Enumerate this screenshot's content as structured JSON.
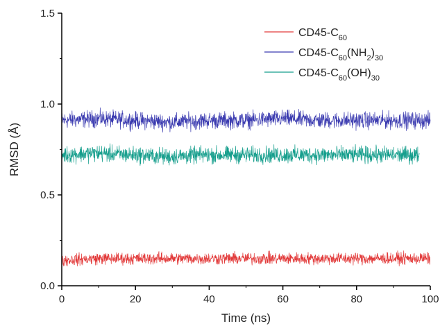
{
  "chart_data": {
    "type": "line",
    "xlabel": "Time (ns)",
    "ylabel": "RMSD (Å)",
    "xlim": [
      0,
      100
    ],
    "ylim": [
      0.0,
      1.5
    ],
    "x_ticks": [
      "0",
      "20",
      "40",
      "60",
      "80",
      "100"
    ],
    "y_ticks": [
      "0.0",
      "0.5",
      "1.0",
      "1.5"
    ],
    "grid": false,
    "legend_position": "top-right",
    "series": [
      {
        "name": "CD45-C60(NH2)30",
        "legend": [
          {
            "t": "CD45-C"
          },
          {
            "t": "60",
            "sub": true
          },
          {
            "t": "(NH"
          },
          {
            "t": "2",
            "sub": true
          },
          {
            "t": ")"
          },
          {
            "t": "30",
            "sub": true
          }
        ],
        "color": "#3b3bb0",
        "x_start": 0,
        "x_end": 100,
        "mean": 0.91,
        "fluctuation": 0.035,
        "values": [
          0.91,
          0.92,
          0.91,
          0.9,
          0.91,
          0.91,
          0.92,
          0.91,
          0.91,
          0.91,
          0.91
        ]
      },
      {
        "name": "CD45-C60(OH)30",
        "legend": [
          {
            "t": "CD45-C"
          },
          {
            "t": "60",
            "sub": true
          },
          {
            "t": "(OH)"
          },
          {
            "t": "30",
            "sub": true
          }
        ],
        "color": "#159e8c",
        "x_start": 0,
        "x_end": 97,
        "mean": 0.72,
        "fluctuation": 0.035,
        "values": [
          0.72,
          0.73,
          0.72,
          0.71,
          0.72,
          0.72,
          0.72,
          0.72,
          0.72,
          0.72,
          0.72
        ]
      },
      {
        "name": "CD45-C60",
        "legend": [
          {
            "t": "CD45-C"
          },
          {
            "t": "60",
            "sub": true
          }
        ],
        "color": "#e23a3a",
        "x_start": 0,
        "x_end": 100,
        "mean": 0.15,
        "fluctuation": 0.025,
        "values": [
          0.14,
          0.15,
          0.15,
          0.15,
          0.15,
          0.15,
          0.15,
          0.15,
          0.15,
          0.15,
          0.15
        ]
      }
    ],
    "legend_order": [
      2,
      0,
      1
    ]
  }
}
